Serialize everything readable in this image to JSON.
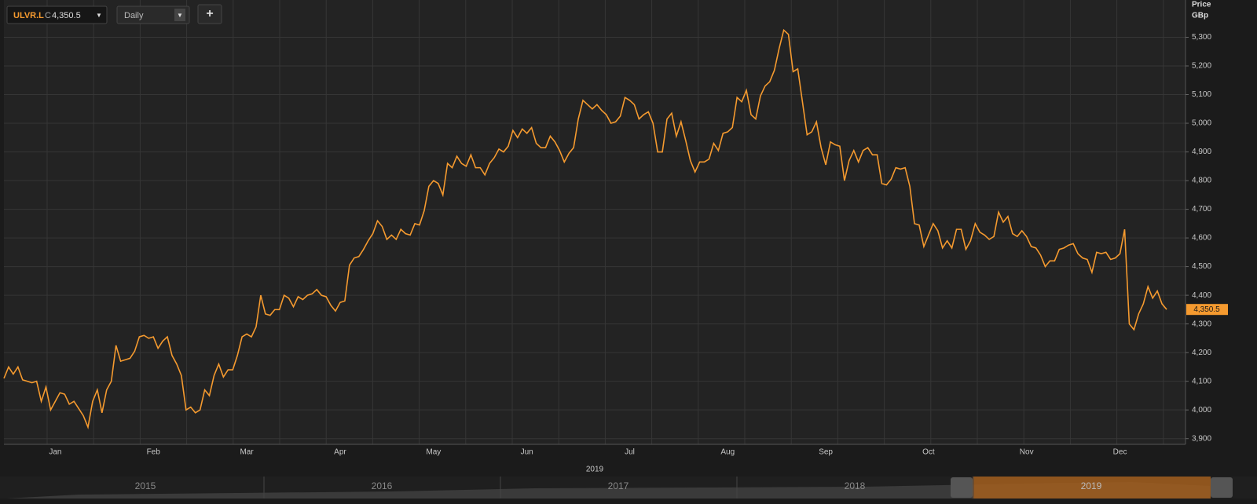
{
  "header": {
    "ticker": "ULVR.L",
    "close_label": "C",
    "close": "4,350.5",
    "interval": "Daily",
    "interval_arrow": "▼",
    "ticker_arrow": "▼",
    "add": "+"
  },
  "navigator": {
    "years": [
      "2015",
      "2016",
      "2017",
      "2018",
      "2019"
    ]
  },
  "chart_data": {
    "type": "line",
    "axis_title": "Price",
    "axis_unit": "GBp",
    "x_axis_year": "2019",
    "categories": [
      null,
      null,
      null,
      null,
      null,
      null,
      null,
      null,
      null,
      null,
      null,
      "Jan",
      null,
      null,
      null,
      null,
      null,
      null,
      null,
      null,
      null,
      null,
      null,
      null,
      null,
      null,
      null,
      null,
      null,
      null,
      null,
      null,
      "Feb",
      null,
      null,
      null,
      null,
      null,
      null,
      null,
      null,
      null,
      null,
      null,
      null,
      null,
      null,
      null,
      null,
      null,
      null,
      null,
      "Mar",
      null,
      null,
      null,
      null,
      null,
      null,
      null,
      null,
      null,
      null,
      null,
      null,
      null,
      null,
      null,
      null,
      null,
      null,
      null,
      "Apr",
      null,
      null,
      null,
      null,
      null,
      null,
      null,
      null,
      null,
      null,
      null,
      null,
      null,
      null,
      null,
      null,
      null,
      null,
      null,
      "May",
      null,
      null,
      null,
      null,
      null,
      null,
      null,
      null,
      null,
      null,
      null,
      null,
      null,
      null,
      null,
      null,
      null,
      null,
      null,
      "Jun",
      null,
      null,
      null,
      null,
      null,
      null,
      null,
      null,
      null,
      null,
      null,
      null,
      null,
      null,
      null,
      null,
      null,
      null,
      null,
      null,
      null,
      "Jul",
      null,
      null,
      null,
      null,
      null,
      null,
      null,
      null,
      null,
      null,
      null,
      null,
      null,
      null,
      null,
      null,
      null,
      null,
      null,
      null,
      "Aug",
      null,
      null,
      null,
      null,
      null,
      null,
      null,
      null,
      null,
      null,
      null,
      null,
      null,
      null,
      null,
      null,
      null,
      null,
      null,
      null,
      "Sep",
      null,
      null,
      null,
      null,
      null,
      null,
      null,
      null,
      null,
      null,
      null,
      null,
      null,
      null,
      null,
      null,
      null,
      null,
      null,
      null,
      null,
      "Oct",
      null,
      null,
      null,
      null,
      null,
      null,
      null,
      null,
      null,
      null,
      null,
      null,
      null,
      null,
      null,
      null,
      null,
      null,
      null,
      null,
      "Nov",
      null,
      null,
      null,
      null,
      null,
      null,
      null,
      null,
      null,
      null,
      null,
      null,
      null,
      null,
      null,
      null,
      null,
      null,
      null,
      "Dec",
      null,
      null,
      null,
      null,
      null,
      null,
      null,
      null,
      null,
      null
    ],
    "series": [
      {
        "name": "ULVR.L",
        "color": "#f59a2f",
        "values": [
          4110,
          4150,
          4125,
          4150,
          4105,
          4100,
          4095,
          4100,
          4030,
          4080,
          4000,
          4030,
          4060,
          4055,
          4020,
          4030,
          4005,
          3980,
          3940,
          4030,
          4070,
          3990,
          4070,
          4100,
          4225,
          4170,
          4175,
          4180,
          4205,
          4255,
          4260,
          4250,
          4255,
          4215,
          4240,
          4255,
          4190,
          4160,
          4120,
          4000,
          4010,
          3990,
          4000,
          4070,
          4050,
          4120,
          4160,
          4115,
          4140,
          4140,
          4190,
          4255,
          4265,
          4255,
          4290,
          4400,
          4335,
          4330,
          4350,
          4350,
          4400,
          4390,
          4360,
          4395,
          4385,
          4400,
          4405,
          4420,
          4400,
          4395,
          4365,
          4345,
          4375,
          4380,
          4505,
          4530,
          4535,
          4560,
          4590,
          4615,
          4660,
          4640,
          4595,
          4610,
          4595,
          4630,
          4615,
          4610,
          4650,
          4645,
          4695,
          4780,
          4800,
          4790,
          4750,
          4860,
          4845,
          4885,
          4860,
          4850,
          4890,
          4845,
          4845,
          4820,
          4860,
          4880,
          4910,
          4900,
          4920,
          4975,
          4950,
          4980,
          4965,
          4985,
          4930,
          4915,
          4915,
          4955,
          4935,
          4905,
          4865,
          4895,
          4915,
          5015,
          5080,
          5065,
          5050,
          5065,
          5045,
          5030,
          5000,
          5005,
          5025,
          5090,
          5080,
          5065,
          5015,
          5030,
          5040,
          5000,
          4900,
          4900,
          5015,
          5035,
          4955,
          5005,
          4940,
          4870,
          4830,
          4865,
          4865,
          4875,
          4930,
          4905,
          4965,
          4970,
          4985,
          5090,
          5075,
          5115,
          5030,
          5015,
          5095,
          5130,
          5145,
          5185,
          5260,
          5325,
          5310,
          5180,
          5190,
          5075,
          4960,
          4970,
          5005,
          4915,
          4855,
          4935,
          4925,
          4920,
          4800,
          4870,
          4905,
          4865,
          4905,
          4915,
          4890,
          4890,
          4790,
          4785,
          4805,
          4845,
          4840,
          4845,
          4780,
          4650,
          4645,
          4570,
          4610,
          4650,
          4625,
          4565,
          4590,
          4565,
          4630,
          4630,
          4560,
          4590,
          4650,
          4620,
          4610,
          4595,
          4605,
          4690,
          4655,
          4675,
          4615,
          4605,
          4625,
          4605,
          4570,
          4565,
          4540,
          4500,
          4520,
          4520,
          4560,
          4565,
          4575,
          4580,
          4545,
          4530,
          4525,
          4480,
          4550,
          4545,
          4550,
          4525,
          4530,
          4545,
          4630,
          4300,
          4280,
          4335,
          4370,
          4430,
          4390,
          4415,
          4370,
          4350.5
        ]
      }
    ],
    "ylim": [
      3880,
      5430
    ],
    "yticks": [
      {
        "value": 3900,
        "label": "3,900"
      },
      {
        "value": 4000,
        "label": "4,000"
      },
      {
        "value": 4100,
        "label": "4,100"
      },
      {
        "value": 4200,
        "label": "4,200"
      },
      {
        "value": 4300,
        "label": "4,300"
      },
      {
        "value": 4400,
        "label": "4,400"
      },
      {
        "value": 4500,
        "label": "4,500"
      },
      {
        "value": 4600,
        "label": "4,600"
      },
      {
        "value": 4700,
        "label": "4,700"
      },
      {
        "value": 4800,
        "label": "4,800"
      },
      {
        "value": 4900,
        "label": "4,900"
      },
      {
        "value": 5000,
        "label": "5,000"
      },
      {
        "value": 5100,
        "label": "5,100"
      },
      {
        "value": 5200,
        "label": "5,200"
      },
      {
        "value": 5300,
        "label": "5,300"
      }
    ],
    "grid": true
  }
}
